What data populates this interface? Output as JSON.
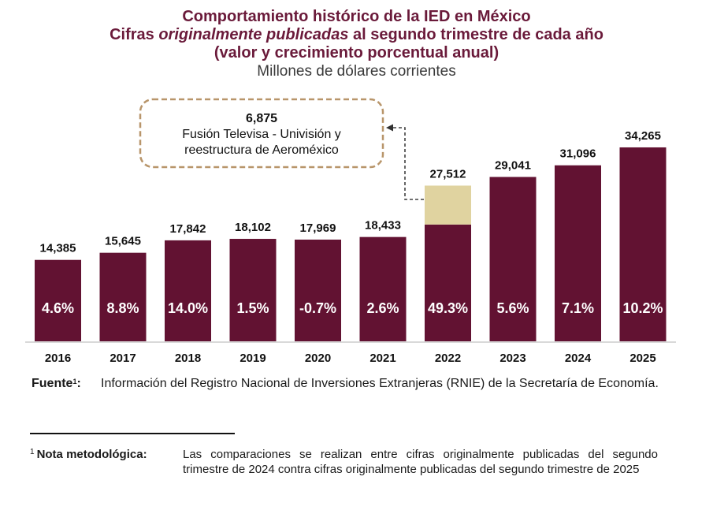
{
  "header": {
    "title_line1": "Comportamiento histórico de la IED en México",
    "title_line2_prefix": "Cifras ",
    "title_line2_italic": "originalmente publicadas",
    "title_line2_suffix": " al segundo trimestre de cada año",
    "title_line3": "(valor y crecimiento porcentual anual)",
    "subtitle": "Millones de dólares corrientes"
  },
  "colors": {
    "bar": "#621232",
    "highlight_segment": "#e0d3a0",
    "title": "#6a1a3a",
    "annotation_border": "#b8956a",
    "axis": "#d9d9d9"
  },
  "chart_data": {
    "type": "bar",
    "title": "Comportamiento histórico de la IED en México",
    "subtitle": "Cifras originalmente publicadas al segundo trimestre de cada año (valor y crecimiento porcentual anual) — Millones de dólares corrientes",
    "xlabel": "",
    "ylabel": "Millones de dólares corrientes",
    "categories": [
      "2016",
      "2017",
      "2018",
      "2019",
      "2020",
      "2021",
      "2022",
      "2023",
      "2024",
      "2025"
    ],
    "values": [
      14385,
      15645,
      17842,
      18102,
      17969,
      18433,
      27512,
      29041,
      31096,
      34265
    ],
    "value_labels": [
      "14,385",
      "15,645",
      "17,842",
      "18,102",
      "17,969",
      "18,433",
      "27,512",
      "29,041",
      "31,096",
      "34,265"
    ],
    "growth_labels": [
      "4.6%",
      "8.8%",
      "14.0%",
      "1.5%",
      "-0.7%",
      "2.6%",
      "49.3%",
      "5.6%",
      "7.1%",
      "10.2%"
    ],
    "growth_pct": [
      4.6,
      8.8,
      14.0,
      1.5,
      -0.7,
      2.6,
      49.3,
      5.6,
      7.1,
      10.2
    ],
    "stacked_highlight": {
      "category": "2022",
      "segment_value": 6875,
      "base_value": 20637
    },
    "ylim": [
      0,
      36000
    ],
    "grid": false,
    "legend": "none",
    "annotation": {
      "value": "6,875",
      "line1": "Fusión Televisa - Univisión y",
      "line2": "reestructura de Aeroméxico",
      "target_category": "2022"
    }
  },
  "footer": {
    "source_label": "Fuente",
    "source_sup": "1",
    "source_colon": ":",
    "source_text": "Información del Registro Nacional de Inversiones Extranjeras (RNIE) de la Secretaría de Economía.",
    "note_sup": "1",
    "note_label": "Nota metodológica:",
    "note_text": "Las comparaciones se realizan entre cifras originalmente publicadas del segundo trimestre de 2024 contra cifras originalmente publicadas del segundo trimestre de 2025"
  }
}
